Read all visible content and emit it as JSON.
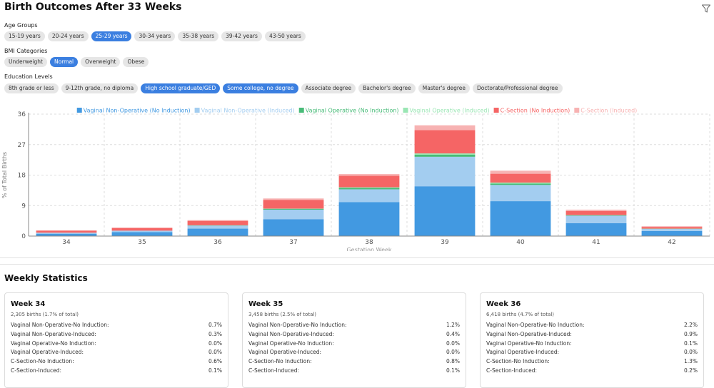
{
  "page": {
    "title": "Birth Outcomes After 33 Weeks"
  },
  "filters": [
    {
      "label": "Age Groups",
      "options": [
        "15-19 years",
        "20-24 years",
        "25-29 years",
        "30-34 years",
        "35-38 years",
        "39-42 years",
        "43-50 years"
      ],
      "selected": [
        "25-29 years"
      ]
    },
    {
      "label": "BMI Categories",
      "options": [
        "Underweight",
        "Normal",
        "Overweight",
        "Obese"
      ],
      "selected": [
        "Normal"
      ]
    },
    {
      "label": "Education Levels",
      "options": [
        "8th grade or less",
        "9-12th grade, no diploma",
        "High school graduate/GED",
        "Some college, no degree",
        "Associate degree",
        "Bachelor's degree",
        "Master's degree",
        "Doctorate/Professional degree"
      ],
      "selected": [
        "High school graduate/GED",
        "Some college, no degree"
      ]
    }
  ],
  "chart_data": {
    "type": "bar",
    "stacked": true,
    "ylabel": "% of Total Births",
    "xlabel": "Gestation Week",
    "ylim": [
      0,
      36
    ],
    "yticks": [
      0,
      9,
      18,
      27,
      36
    ],
    "categories": [
      "34",
      "35",
      "36",
      "37",
      "38",
      "39",
      "40",
      "41",
      "42"
    ],
    "series": [
      {
        "name": "Vaginal Non-Operative (No Induction)",
        "color": "#4299e1",
        "values": [
          0.7,
          1.2,
          2.2,
          5.0,
          10.0,
          14.7,
          10.3,
          3.8,
          1.5
        ]
      },
      {
        "name": "Vaginal Non-Operative (Induced)",
        "color": "#a3cdf0",
        "values": [
          0.3,
          0.4,
          0.9,
          2.8,
          3.8,
          8.7,
          4.8,
          2.2,
          0.6
        ]
      },
      {
        "name": "Vaginal Operative (No Induction)",
        "color": "#48bb78",
        "values": [
          0.0,
          0.0,
          0.1,
          0.2,
          0.4,
          0.6,
          0.4,
          0.1,
          0.05
        ]
      },
      {
        "name": "Vaginal Operative (Induced)",
        "color": "#9ae6b4",
        "values": [
          0.0,
          0.0,
          0.0,
          0.1,
          0.2,
          0.4,
          0.3,
          0.1,
          0.05
        ]
      },
      {
        "name": "C-Section (No Induction)",
        "color": "#f56565",
        "values": [
          0.6,
          0.8,
          1.3,
          2.6,
          3.4,
          6.9,
          2.6,
          1.2,
          0.5
        ]
      },
      {
        "name": "C-Section (Induced)",
        "color": "#f7b2b2",
        "values": [
          0.1,
          0.1,
          0.2,
          0.4,
          0.5,
          1.4,
          0.9,
          0.4,
          0.2
        ]
      }
    ]
  },
  "weekly": {
    "title": "Weekly Statistics",
    "cards": [
      {
        "title": "Week 34",
        "births": "2,305 births (1.7% of total)",
        "rows": [
          {
            "label": "Vaginal Non-Operative-No Induction:",
            "value": "0.7%"
          },
          {
            "label": "Vaginal Non-Operative-Induced:",
            "value": "0.3%"
          },
          {
            "label": "Vaginal Operative-No Induction:",
            "value": "0.0%"
          },
          {
            "label": "Vaginal Operative-Induced:",
            "value": "0.0%"
          },
          {
            "label": "C-Section-No Induction:",
            "value": "0.6%"
          },
          {
            "label": "C-Section-Induced:",
            "value": "0.1%"
          }
        ]
      },
      {
        "title": "Week 35",
        "births": "3,458 births (2.5% of total)",
        "rows": [
          {
            "label": "Vaginal Non-Operative-No Induction:",
            "value": "1.2%"
          },
          {
            "label": "Vaginal Non-Operative-Induced:",
            "value": "0.4%"
          },
          {
            "label": "Vaginal Operative-No Induction:",
            "value": "0.0%"
          },
          {
            "label": "Vaginal Operative-Induced:",
            "value": "0.0%"
          },
          {
            "label": "C-Section-No Induction:",
            "value": "0.8%"
          },
          {
            "label": "C-Section-Induced:",
            "value": "0.1%"
          }
        ]
      },
      {
        "title": "Week 36",
        "births": "6,418 births (4.7% of total)",
        "rows": [
          {
            "label": "Vaginal Non-Operative-No Induction:",
            "value": "2.2%"
          },
          {
            "label": "Vaginal Non-Operative-Induced:",
            "value": "0.9%"
          },
          {
            "label": "Vaginal Operative-No Induction:",
            "value": "0.1%"
          },
          {
            "label": "Vaginal Operative-Induced:",
            "value": "0.0%"
          },
          {
            "label": "C-Section-No Induction:",
            "value": "1.3%"
          },
          {
            "label": "C-Section-Induced:",
            "value": "0.2%"
          }
        ]
      }
    ]
  }
}
